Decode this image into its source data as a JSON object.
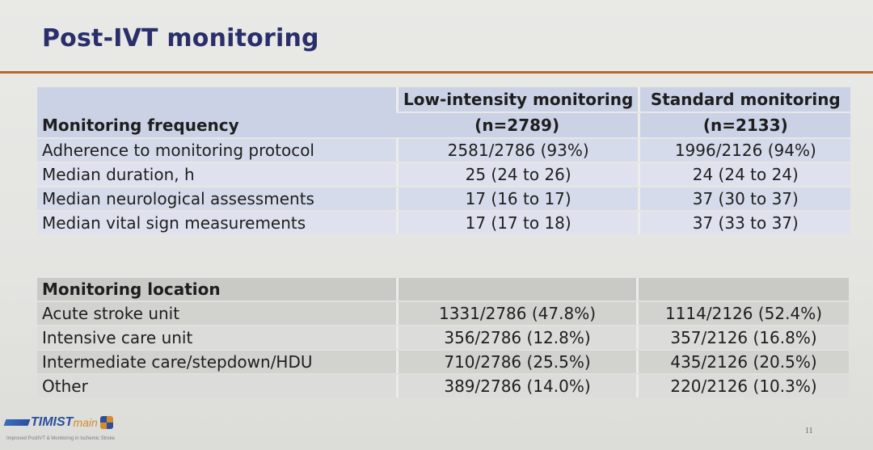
{
  "slide": {
    "title": "Post-IVT monitoring",
    "page_number": "11",
    "logo": {
      "text_prefix": "TIMIST",
      "text_suffix": "main",
      "tagline": "Improved PostIVT & Monitoring in Ischemic Stroke"
    }
  },
  "frequency_table": {
    "section_label": "Monitoring frequency",
    "columns": [
      {
        "title": "Low-intensity monitoring",
        "n": "(n=2789)"
      },
      {
        "title": "Standard monitoring",
        "n": "(n=2133)"
      }
    ],
    "rows": [
      {
        "label": "Adherence to monitoring protocol",
        "low": "2581/2786 (93%)",
        "standard": "1996/2126 (94%)"
      },
      {
        "label": "Median duration, h",
        "low": "25 (24 to 26)",
        "standard": "24 (24 to 24)"
      },
      {
        "label": "Median neurological assessments",
        "low": "17 (16 to 17)",
        "standard": "37 (30 to 37)"
      },
      {
        "label": "Median vital sign measurements",
        "low": "17 (17 to 18)",
        "standard": "37 (33 to 37)"
      }
    ]
  },
  "location_table": {
    "section_label": "Monitoring location",
    "rows": [
      {
        "label": "Acute stroke unit",
        "low": "1331/2786 (47.8%)",
        "standard": "1114/2126 (52.4%)"
      },
      {
        "label": "Intensive care unit",
        "low": "356/2786 (12.8%)",
        "standard": "357/2126 (16.8%)"
      },
      {
        "label": "Intermediate care/stepdown/HDU",
        "low": "710/2786 (25.5%)",
        "standard": "435/2126 (20.5%)"
      },
      {
        "label": "Other",
        "low": "389/2786 (14.0%)",
        "standard": "220/2126 (10.3%)"
      }
    ]
  }
}
